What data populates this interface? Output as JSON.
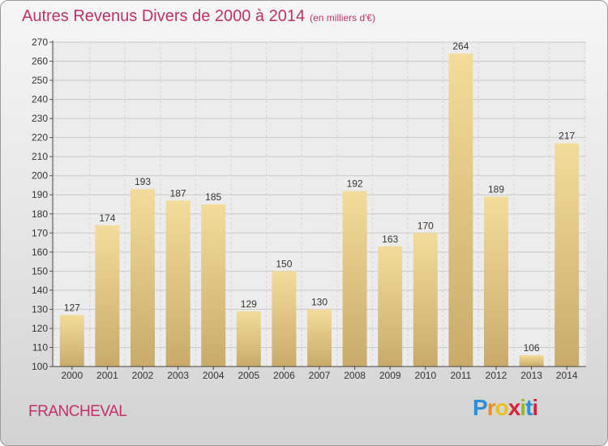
{
  "header": {
    "title": "Autres Revenus Divers de 2000 à 2014",
    "subtitle": "(en milliers d'€)"
  },
  "footer": {
    "place": "FRANCHEVAL",
    "logo_letters": [
      "P",
      "r",
      "o",
      "x",
      "i",
      "t",
      "i"
    ],
    "logo_colors": [
      "#2a8fd6",
      "#f28c1e",
      "#e8c31e",
      "#d6243a",
      "#8cbf26",
      "#2a8fd6",
      "#d6243a"
    ]
  },
  "chart_data": {
    "type": "bar",
    "categories": [
      "2000",
      "2001",
      "2002",
      "2003",
      "2004",
      "2005",
      "2006",
      "2007",
      "2008",
      "2009",
      "2010",
      "2011",
      "2012",
      "2013",
      "2014"
    ],
    "values": [
      127,
      174,
      193,
      187,
      185,
      129,
      150,
      130,
      192,
      163,
      170,
      264,
      189,
      106,
      217
    ],
    "title": "Autres Revenus Divers de 2000 à 2014",
    "subtitle": "(en milliers d'€)",
    "xlabel": "",
    "ylabel": "",
    "ylim": [
      100,
      270
    ],
    "yticks": [
      100,
      110,
      120,
      130,
      140,
      150,
      160,
      170,
      180,
      190,
      200,
      210,
      220,
      230,
      240,
      250,
      260,
      270
    ],
    "grid": true,
    "bar_color": "#e3c888",
    "show_value_labels": true
  }
}
